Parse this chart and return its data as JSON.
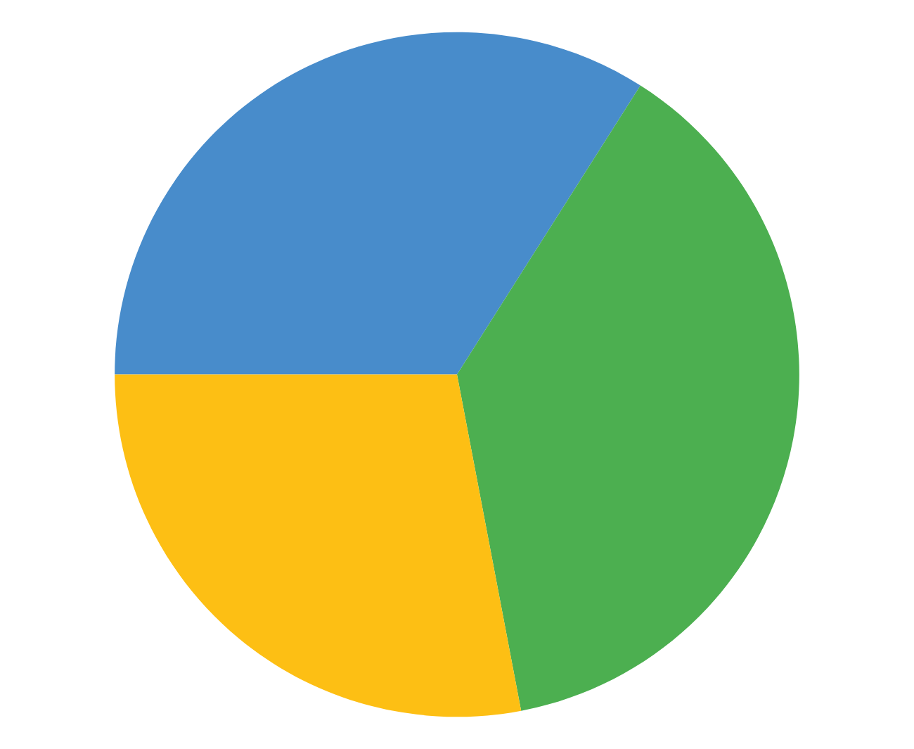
{
  "chart_data": {
    "type": "pie",
    "categories": [
      null,
      null,
      null
    ],
    "values": [
      34,
      38,
      28
    ],
    "colors": [
      "#488ccb",
      "#4caf50",
      "#fdbf14"
    ]
  }
}
